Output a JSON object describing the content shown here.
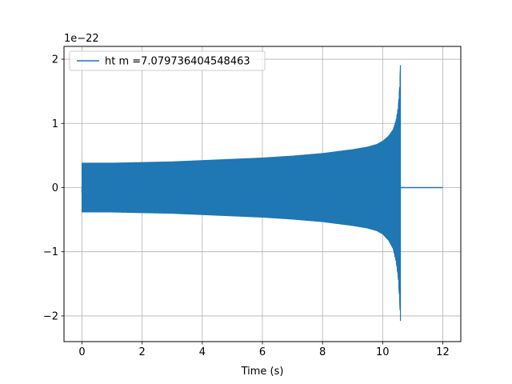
{
  "chart_data": {
    "type": "line",
    "title": "",
    "xlabel": "Time (s)",
    "ylabel": "",
    "offset_text": "1e−22",
    "xlim": [
      -0.6,
      12.6
    ],
    "ylim": [
      -2.4,
      2.2
    ],
    "xticks": [
      0,
      2,
      4,
      6,
      8,
      10,
      12
    ],
    "xtick_labels": [
      "0",
      "2",
      "4",
      "6",
      "8",
      "10",
      "12"
    ],
    "yticks": [
      -2,
      -1,
      0,
      1,
      2
    ],
    "ytick_labels": [
      "−2",
      "−1",
      "0",
      "1",
      "2"
    ],
    "grid": true,
    "legend_position": "upper-left",
    "series": [
      {
        "name": "ht m =7.079736404548463",
        "color": "#1f77b4",
        "description_points": {
          "t": [
            0.0,
            1.0,
            2.0,
            3.0,
            4.0,
            5.0,
            6.0,
            7.0,
            8.0,
            8.5,
            9.0,
            9.5,
            9.8,
            10.0,
            10.2,
            10.35,
            10.45,
            10.52,
            10.57,
            10.6,
            10.61,
            12.0
          ],
          "upper_envelope": [
            0.38,
            0.38,
            0.39,
            0.4,
            0.42,
            0.44,
            0.46,
            0.49,
            0.53,
            0.56,
            0.59,
            0.63,
            0.67,
            0.72,
            0.8,
            0.9,
            1.05,
            1.25,
            1.6,
            2.02,
            0.0,
            0.0
          ],
          "lower_envelope": [
            -0.38,
            -0.38,
            -0.39,
            -0.4,
            -0.42,
            -0.44,
            -0.46,
            -0.49,
            -0.53,
            -0.56,
            -0.59,
            -0.63,
            -0.67,
            -0.72,
            -0.82,
            -0.95,
            -1.15,
            -1.4,
            -1.8,
            -2.18,
            0.0,
            0.0
          ]
        },
        "merger_time": 10.6,
        "end_time": 12.0
      }
    ]
  }
}
